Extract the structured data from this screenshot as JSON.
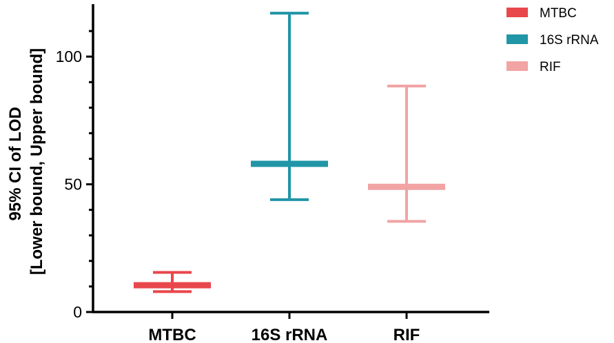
{
  "chart_data": {
    "type": "errorbar",
    "title": "",
    "ylabel_line1": "95% CI of LOD",
    "ylabel_line2": "[Lower bound, Upper bound]",
    "xlabel": "",
    "categories": [
      "MTBC",
      "16S rRNA",
      "RIF"
    ],
    "series": [
      {
        "name": "MTBC",
        "color": "#e8474c",
        "estimate": 10.5,
        "lower": 8,
        "upper": 15.5
      },
      {
        "name": "16S rRNA",
        "color": "#2196a6",
        "estimate": 58,
        "lower": 44,
        "upper": 117
      },
      {
        "name": "RIF",
        "color": "#f2a3a4",
        "estimate": 49,
        "lower": 35.5,
        "upper": 88.5
      }
    ],
    "ylim": [
      0,
      120
    ],
    "yticks": [
      "0",
      "50",
      "100"
    ],
    "ytick_values": [
      0,
      50,
      100
    ],
    "grid": false,
    "legend_position": "top-right"
  }
}
